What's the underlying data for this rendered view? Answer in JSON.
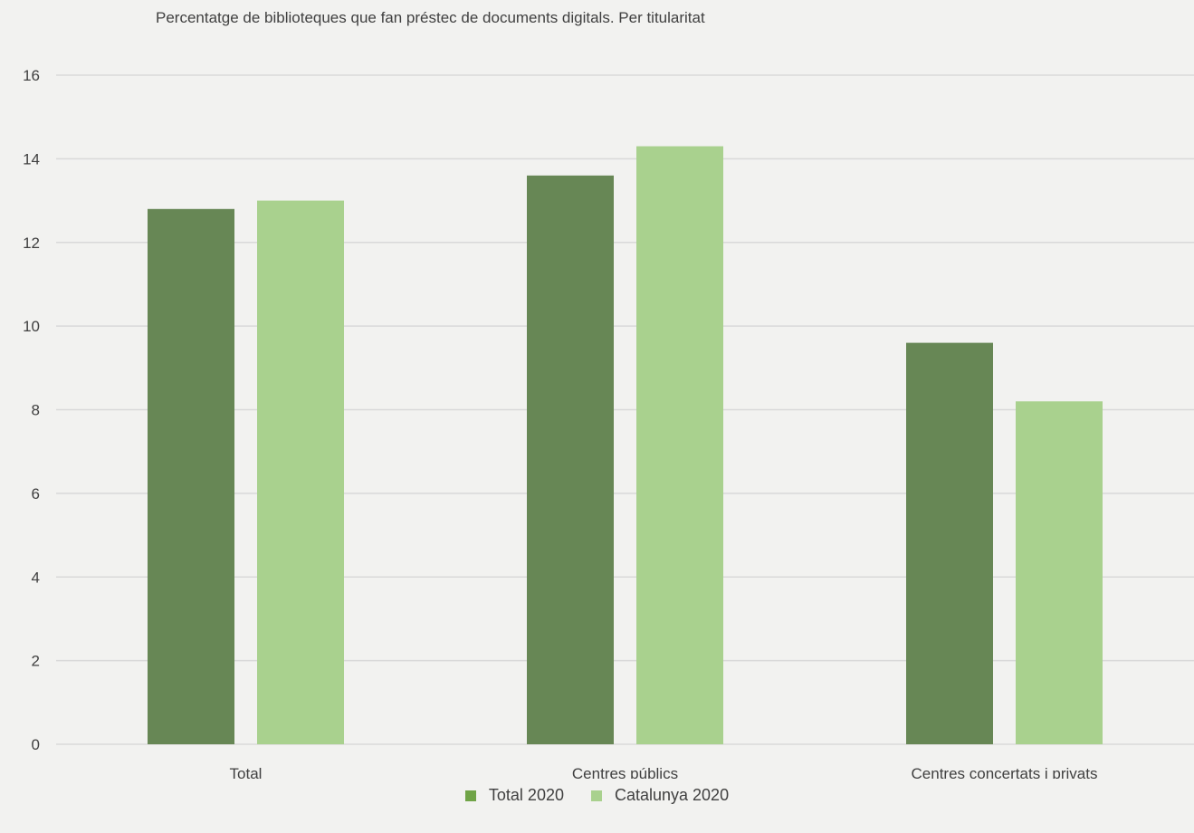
{
  "chart_data": {
    "type": "bar",
    "title": "Percentatge de biblioteques que fan préstec de documents digitals. Per titularitat",
    "xlabel": "",
    "ylabel": "",
    "categories": [
      "Total",
      "Centres públics",
      "Centres concertats i privats"
    ],
    "series": [
      {
        "name": "Total 2020",
        "values": [
          12.8,
          13.6,
          9.6
        ],
        "color": "#678755",
        "legend_color": "#70a447"
      },
      {
        "name": "Catalunya 2020",
        "values": [
          13.0,
          14.3,
          8.2
        ],
        "color": "#a9d18e",
        "legend_color": "#a9d18e"
      }
    ],
    "ylim": [
      0,
      16
    ],
    "yticks": [
      0,
      2,
      4,
      6,
      8,
      10,
      12,
      14,
      16
    ],
    "grid": true,
    "legend_position": "bottom"
  }
}
